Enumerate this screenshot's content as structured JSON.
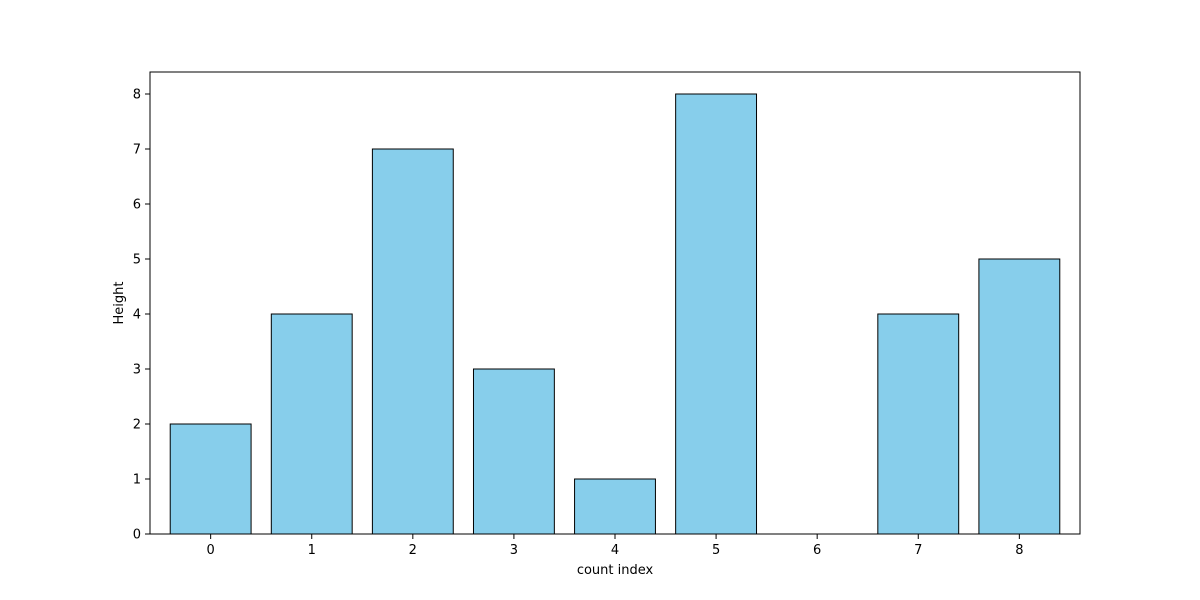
{
  "chart_data": {
    "type": "bar",
    "categories": [
      "0",
      "1",
      "2",
      "3",
      "4",
      "5",
      "6",
      "7",
      "8"
    ],
    "values": [
      2,
      4,
      7,
      3,
      1,
      8,
      0,
      4,
      5
    ],
    "title": "",
    "xlabel": "count index",
    "ylabel": "Height",
    "ylim": [
      0,
      8.4
    ],
    "yticks": [
      0,
      1,
      2,
      3,
      4,
      5,
      6,
      7,
      8
    ],
    "grid": false,
    "bar_color": "#87CEEB",
    "edge_color": "#000000"
  }
}
